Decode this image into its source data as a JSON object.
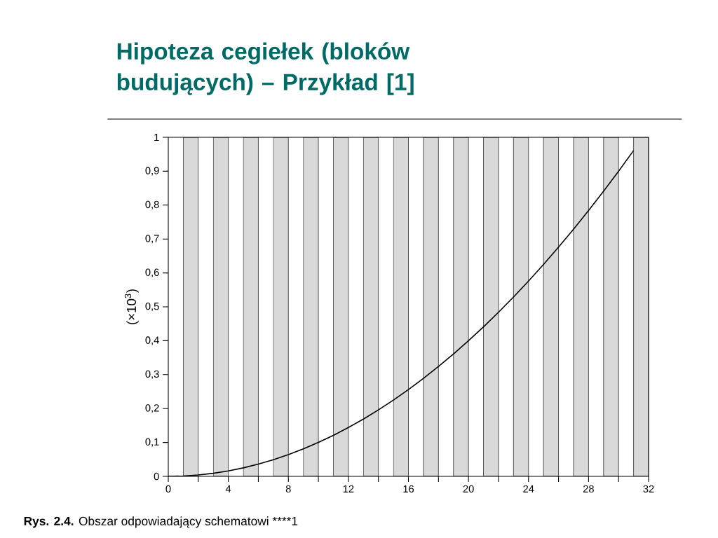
{
  "chart_data": {
    "type": "line",
    "title": "Hipoteza cegiełek (bloków budujących) – Przykład [1]",
    "ylabel": "(×10$^{3}$)",
    "x": [
      0,
      1,
      2,
      3,
      4,
      5,
      6,
      7,
      8,
      9,
      10,
      11,
      12,
      13,
      14,
      15,
      16,
      17,
      18,
      19,
      20,
      21,
      22,
      23,
      24,
      25,
      26,
      27,
      28,
      29,
      30,
      31
    ],
    "series": [
      {
        "color": "#000000",
        "values": [
          0,
          0.001,
          0.004,
          0.009,
          0.016,
          0.025,
          0.036,
          0.049,
          0.064,
          0.081,
          0.1,
          0.121,
          0.144,
          0.169,
          0.196,
          0.225,
          0.256,
          0.289,
          0.324,
          0.361,
          0.4,
          0.441,
          0.484,
          0.529,
          0.576,
          0.625,
          0.676,
          0.729,
          0.784,
          0.841,
          0.9,
          0.961
        ]
      }
    ],
    "xlim": [
      0,
      32
    ],
    "ylim": [
      0,
      1
    ],
    "xticks": [
      0,
      {
        "value": 2,
        "label": null
      },
      4,
      {
        "value": 6,
        "label": null
      },
      8,
      {
        "value": 10,
        "label": null
      },
      12,
      {
        "value": 14,
        "label": null
      },
      16,
      {
        "value": 18,
        "label": null
      },
      20,
      {
        "value": 22,
        "label": null
      },
      24,
      {
        "value": 26,
        "label": null
      },
      28,
      {
        "value": 30,
        "label": null
      },
      32
    ],
    "yticks": [
      0,
      {
        "value": 0.1,
        "label": "0,1"
      },
      {
        "value": 0.2,
        "label": "0,2"
      },
      {
        "value": 0.3,
        "label": "0,3"
      },
      {
        "value": 0.4,
        "label": "0,4"
      },
      {
        "value": 0.5,
        "label": "0,5"
      },
      {
        "value": 0.6,
        "label": "0,6"
      },
      {
        "value": 0.7,
        "label": "0,7"
      },
      {
        "value": 0.8,
        "label": "0,8"
      },
      {
        "value": 0.9,
        "label": "0,9"
      },
      1
    ],
    "bands": [
      {
        "axis": "x",
        "from": 1,
        "to": 2,
        "color": "#d9d9d9"
      },
      {
        "axis": "x",
        "from": 3,
        "to": 4,
        "color": "#d9d9d9"
      },
      {
        "axis": "x",
        "from": 5,
        "to": 6,
        "color": "#d9d9d9"
      },
      {
        "axis": "x",
        "from": 7,
        "to": 8,
        "color": "#d9d9d9"
      },
      {
        "axis": "x",
        "from": 9,
        "to": 10,
        "color": "#d9d9d9"
      },
      {
        "axis": "x",
        "from": 11,
        "to": 12,
        "color": "#d9d9d9"
      },
      {
        "axis": "x",
        "from": 13,
        "to": 14,
        "color": "#d9d9d9"
      },
      {
        "axis": "x",
        "from": 15,
        "to": 16,
        "color": "#d9d9d9"
      },
      {
        "axis": "x",
        "from": 17,
        "to": 18,
        "color": "#d9d9d9"
      },
      {
        "axis": "x",
        "from": 19,
        "to": 20,
        "color": "#d9d9d9"
      },
      {
        "axis": "x",
        "from": 21,
        "to": 22,
        "color": "#d9d9d9"
      },
      {
        "axis": "x",
        "from": 23,
        "to": 24,
        "color": "#d9d9d9"
      },
      {
        "axis": "x",
        "from": 25,
        "to": 26,
        "color": "#d9d9d9"
      },
      {
        "axis": "x",
        "from": 27,
        "to": 28,
        "color": "#d9d9d9"
      },
      {
        "axis": "x",
        "from": 29,
        "to": 30,
        "color": "#d9d9d9"
      },
      {
        "axis": "x",
        "from": 31,
        "to": 32,
        "color": "#d9d9d9"
      }
    ],
    "annotations": [
      "**Rys. 2.4.** Obszar odpowiadający schematowi ****1"
    ]
  }
}
